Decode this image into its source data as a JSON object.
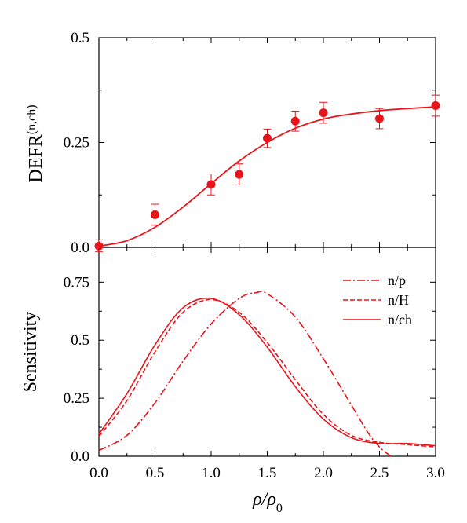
{
  "chart_data": [
    {
      "type": "scatter",
      "title": "",
      "xlabel": "ρ/ρ0",
      "ylabel": "DEFR(n,ch)",
      "xlim": [
        0.0,
        3.0
      ],
      "ylim": [
        0.0,
        0.5
      ],
      "x_ticks": [
        "0.0",
        "0.5",
        "1.0",
        "1.5",
        "2.0",
        "2.5",
        "3.0"
      ],
      "y_ticks": [
        "0.0",
        "0.25",
        "0.5"
      ],
      "color": "#e8141b",
      "grid": false,
      "series": [
        {
          "kind": "points-with-errorbars",
          "x": [
            0.0,
            0.5,
            1.0,
            1.25,
            1.5,
            1.75,
            2.0,
            2.5,
            3.0
          ],
          "y": [
            0.003,
            0.078,
            0.15,
            0.174,
            0.26,
            0.301,
            0.321,
            0.307,
            0.338
          ],
          "error": [
            0.015,
            0.025,
            0.025,
            0.025,
            0.022,
            0.024,
            0.025,
            0.024,
            0.025
          ]
        },
        {
          "kind": "fit-line",
          "x": [
            0.0,
            0.25,
            0.5,
            0.75,
            1.0,
            1.25,
            1.5,
            1.75,
            2.0,
            2.25,
            2.5,
            2.75,
            3.0
          ],
          "y": [
            0.003,
            0.016,
            0.048,
            0.096,
            0.152,
            0.206,
            0.25,
            0.284,
            0.306,
            0.318,
            0.326,
            0.331,
            0.335
          ]
        }
      ]
    },
    {
      "type": "line",
      "title": "",
      "xlabel": "ρ/ρ0",
      "ylabel": "Sensitivity",
      "xlim": [
        0.0,
        3.0
      ],
      "ylim": [
        0.0,
        0.9
      ],
      "x_ticks": [
        "0.0",
        "0.5",
        "1.0",
        "1.5",
        "2.0",
        "2.5",
        "3.0"
      ],
      "y_ticks": [
        "0.0",
        "0.25",
        "0.5",
        "0.75"
      ],
      "legend_position": "top-right",
      "color": "#e8141b",
      "grid": false,
      "series": [
        {
          "name": "n/p",
          "style": "dash-dot",
          "x": [
            0.0,
            0.25,
            0.5,
            0.75,
            1.0,
            1.25,
            1.4,
            1.5,
            1.75,
            2.0,
            2.25,
            2.4,
            2.5,
            2.6
          ],
          "y": [
            0.025,
            0.09,
            0.23,
            0.41,
            0.57,
            0.68,
            0.705,
            0.7,
            0.6,
            0.42,
            0.22,
            0.1,
            0.04,
            0.0
          ]
        },
        {
          "name": "n/H",
          "style": "dashed",
          "x": [
            0.0,
            0.25,
            0.5,
            0.75,
            1.0,
            1.25,
            1.5,
            1.75,
            2.0,
            2.25,
            2.5,
            2.75,
            3.0
          ],
          "y": [
            0.085,
            0.24,
            0.45,
            0.62,
            0.675,
            0.62,
            0.49,
            0.33,
            0.18,
            0.09,
            0.06,
            0.05,
            0.04
          ]
        },
        {
          "name": "n/ch",
          "style": "solid",
          "x": [
            0.0,
            0.25,
            0.5,
            0.75,
            1.0,
            1.25,
            1.5,
            1.75,
            2.0,
            2.25,
            2.5,
            2.75,
            3.0
          ],
          "y": [
            0.095,
            0.27,
            0.48,
            0.64,
            0.68,
            0.61,
            0.47,
            0.3,
            0.16,
            0.08,
            0.055,
            0.055,
            0.045
          ]
        }
      ]
    }
  ]
}
